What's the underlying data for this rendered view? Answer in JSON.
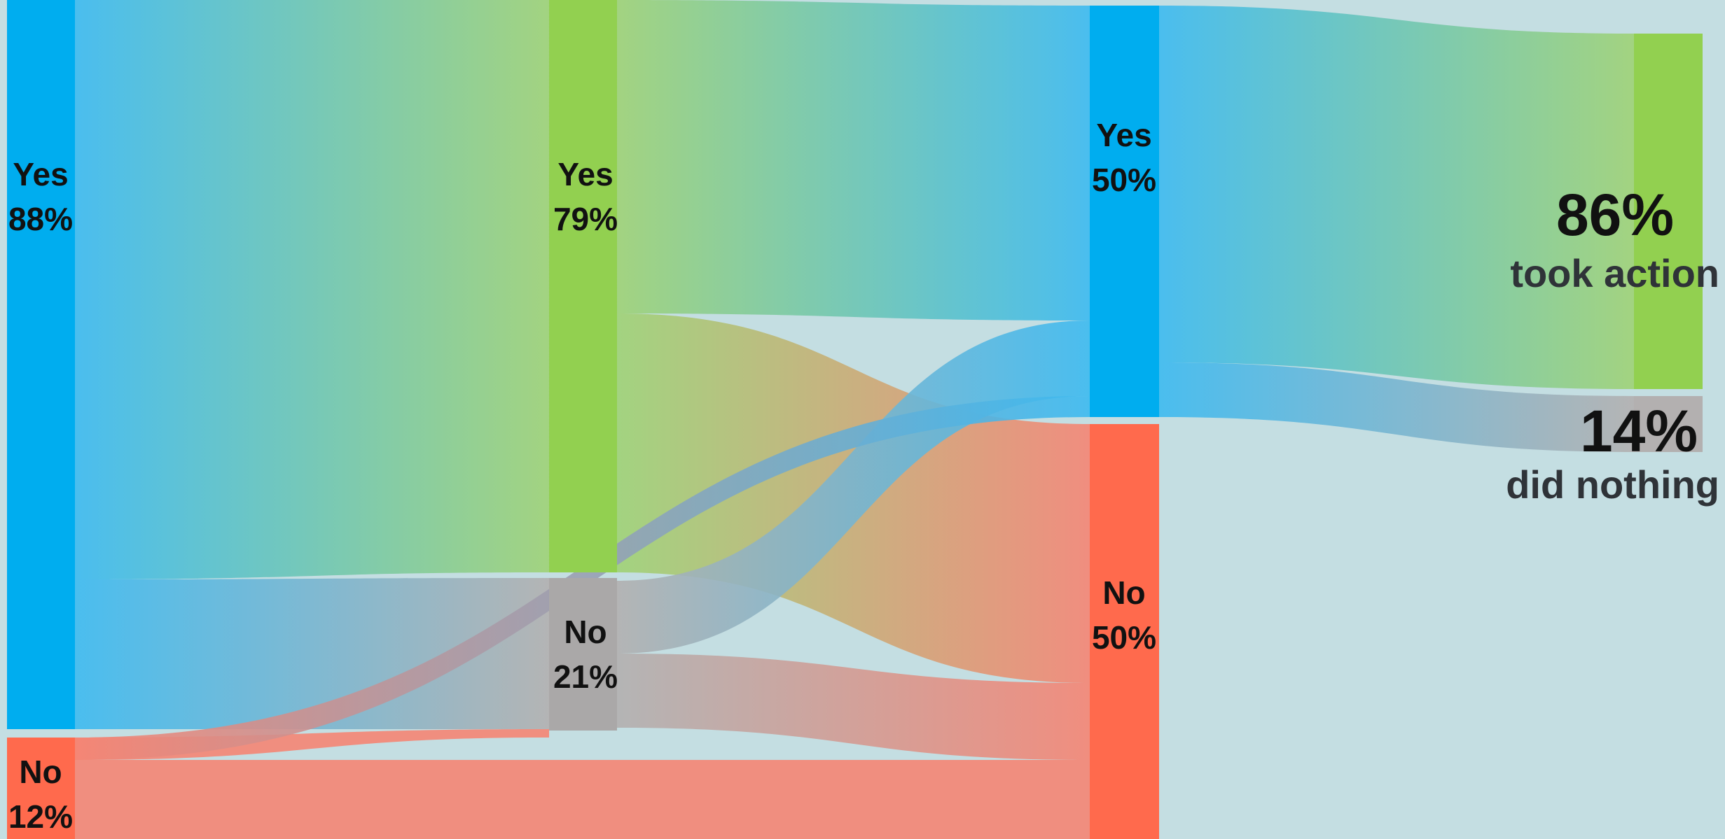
{
  "colors": {
    "background": "#c4dee2",
    "yes_blue": "#00adef",
    "yes_green": "#92d050",
    "no_grey": "#aaa8a8",
    "no_red": "#ff6a4d",
    "took_action_green": "#92d050",
    "did_nothing_grey": "#b3b0b0"
  },
  "columns": [
    {
      "nodes": [
        {
          "id": "c1_yes",
          "line1": "Yes",
          "line2": "88%",
          "color": "#00adef"
        },
        {
          "id": "c1_no",
          "line1": "No",
          "line2": "12%",
          "color": "#ff6a4d"
        }
      ]
    },
    {
      "nodes": [
        {
          "id": "c2_yes",
          "line1": "Yes",
          "line2": "79%",
          "color": "#92d050"
        },
        {
          "id": "c2_no",
          "line1": "No",
          "line2": "21%",
          "color": "#aaa8a8"
        }
      ]
    },
    {
      "nodes": [
        {
          "id": "c3_yes",
          "line1": "Yes",
          "line2": "50%",
          "color": "#00adef"
        },
        {
          "id": "c3_no",
          "line1": "No",
          "line2": "50%",
          "color": "#ff6a4d"
        }
      ]
    },
    {
      "nodes": [
        {
          "id": "c4_action",
          "pct": "86%",
          "caption": "took action",
          "color": "#92d050"
        },
        {
          "id": "c4_nothing",
          "pct": "14%",
          "caption": "did nothing",
          "color": "#b3b0b0"
        }
      ]
    }
  ],
  "flows": [
    {
      "from": "c1_yes",
      "to": "c2_yes",
      "from_color": "#3dbaf0",
      "to_color": "#9fd276"
    },
    {
      "from": "c1_yes",
      "to": "c2_no",
      "from_color": "#3dbaf0",
      "to_color": "#b2b0b0"
    },
    {
      "from": "c1_no",
      "to": "c2_no",
      "from_color": "#f58574",
      "to_color": "#f58574"
    },
    {
      "from": "c1_no",
      "to": "c3_no",
      "from_color": "#f58574",
      "to_color": "#f58574"
    },
    {
      "from": "c2_yes",
      "to": "c3_yes",
      "from_color": "#9fd276",
      "to_color": "#3dbaf0"
    },
    {
      "from": "c2_yes",
      "to": "c3_no",
      "from_color": "#9fd276",
      "to_color": "#f58574"
    },
    {
      "from": "c2_no",
      "to": "c3_yes",
      "from_color": "#b2b0b0",
      "to_color": "#3dbaf0"
    },
    {
      "from": "c2_no",
      "to": "c3_no",
      "from_color": "#b2b0b0",
      "to_color": "#f58574"
    },
    {
      "from": "c1_no",
      "to": "c3_yes",
      "from_color": "#f58574",
      "to_color": "#3dbaf0"
    },
    {
      "from": "c3_yes",
      "to": "c4_action",
      "from_color": "#3dbaf0",
      "to_color": "#9fd276"
    },
    {
      "from": "c3_yes",
      "to": "c4_nothing",
      "from_color": "#3dbaf0",
      "to_color": "#b3b0b0"
    }
  ]
}
